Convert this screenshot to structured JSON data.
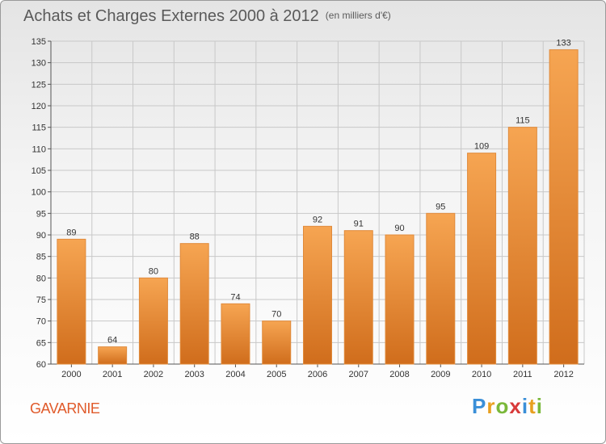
{
  "title": "Achats et Charges Externes 2000 à 2012",
  "unit": "(en milliers d'€)",
  "commune": "GAVARNIE",
  "logo": [
    "P",
    "r",
    "o",
    "x",
    "i",
    "t",
    "i"
  ],
  "colors": {
    "bar_top": "#f6a552",
    "bar_bottom": "#d06d1c",
    "grid": "#c8c8c8",
    "title": "#5a5a5a",
    "commune": "#e05a2a"
  },
  "chart_data": {
    "type": "bar",
    "title": "Achats et Charges Externes 2000 à 2012",
    "xlabel": "",
    "ylabel": "",
    "categories": [
      "2000",
      "2001",
      "2002",
      "2003",
      "2004",
      "2005",
      "2006",
      "2007",
      "2008",
      "2009",
      "2010",
      "2011",
      "2012"
    ],
    "values": [
      89,
      64,
      80,
      88,
      74,
      70,
      92,
      91,
      90,
      95,
      109,
      115,
      133
    ],
    "ylim": [
      60,
      135
    ],
    "yticks": [
      60,
      65,
      70,
      75,
      80,
      85,
      90,
      95,
      100,
      105,
      110,
      115,
      120,
      125,
      130,
      135
    ],
    "grid": true
  }
}
